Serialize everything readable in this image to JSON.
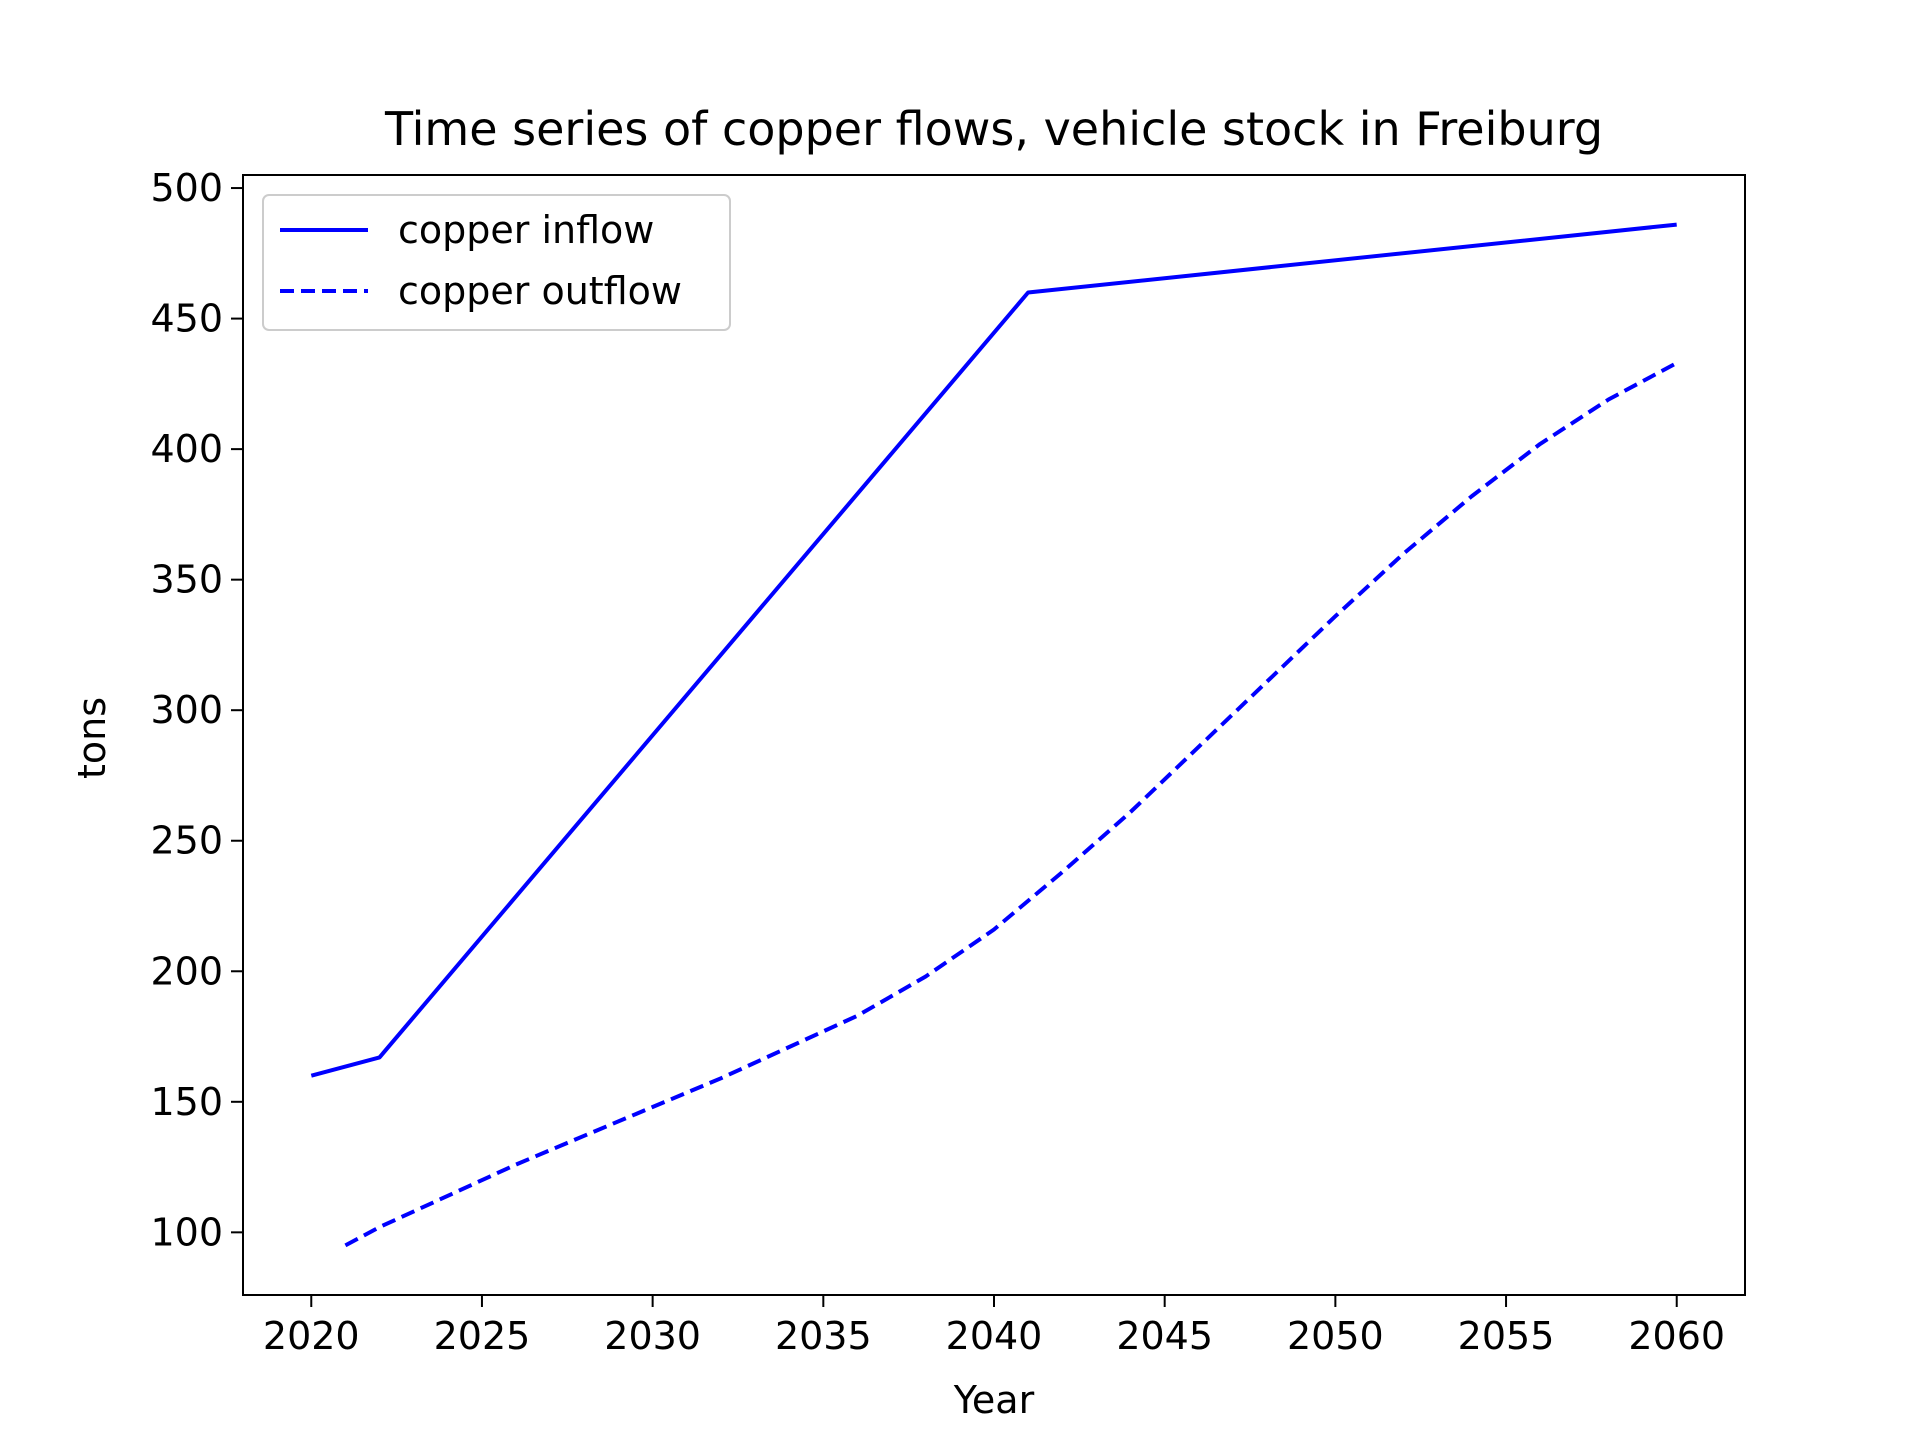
{
  "chart_data": {
    "type": "line",
    "title": "Time series of copper flows, vehicle stock in Freiburg",
    "xlabel": "Year",
    "ylabel": "tons",
    "xlim": [
      2018,
      2062
    ],
    "ylim": [
      76,
      505
    ],
    "xticks": [
      "2020",
      "2025",
      "2030",
      "2035",
      "2040",
      "2045",
      "2050",
      "2055",
      "2060"
    ],
    "yticks": [
      "100",
      "150",
      "200",
      "250",
      "300",
      "350",
      "400",
      "450",
      "500"
    ],
    "grid": false,
    "legend_position": "top-left",
    "series": [
      {
        "name": "copper inflow",
        "color": "#0000ff",
        "style": "solid",
        "x": [
          2020,
          2022,
          2041,
          2060
        ],
        "y": [
          160,
          167,
          460,
          486
        ]
      },
      {
        "name": "copper outflow",
        "color": "#0000ff",
        "style": "dashed",
        "x": [
          2021,
          2022,
          2024,
          2026,
          2028,
          2030,
          2032,
          2034,
          2036,
          2038,
          2040,
          2042,
          2044,
          2046,
          2048,
          2050,
          2052,
          2054,
          2056,
          2058,
          2060
        ],
        "y": [
          95,
          102,
          114,
          126,
          137,
          148,
          159,
          171,
          183,
          198,
          216,
          238,
          261,
          286,
          311,
          336,
          360,
          382,
          402,
          419,
          433
        ]
      }
    ]
  }
}
